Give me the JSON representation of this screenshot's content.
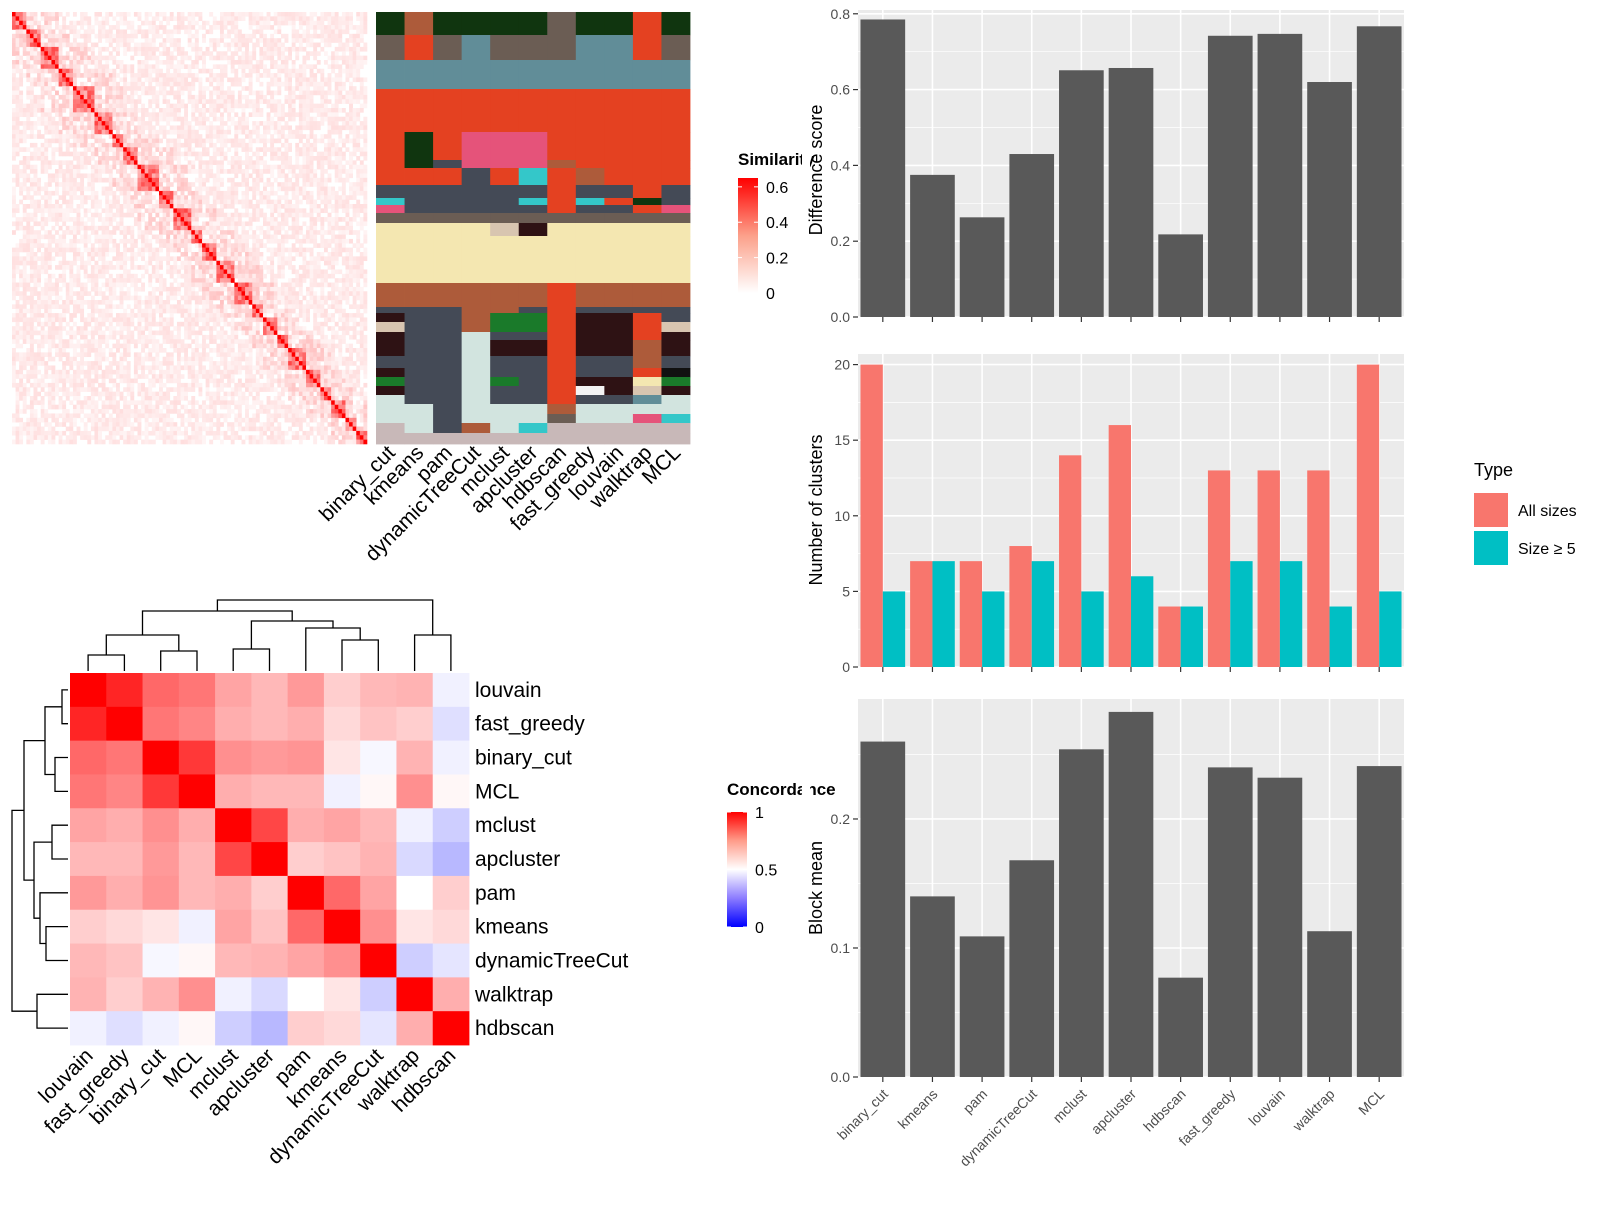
{
  "methods": [
    "binary_cut",
    "kmeans",
    "pam",
    "dynamicTreeCut",
    "mclust",
    "apcluster",
    "hdbscan",
    "fast_greedy",
    "louvain",
    "walktrap",
    "MCL"
  ],
  "similarity_heatmap": {
    "legend_title": "Similarity",
    "legend_ticks": [
      "0",
      "0.2",
      "0.4",
      "0.6"
    ],
    "legend_range": [
      0,
      0.65
    ]
  },
  "concordance_heatmap": {
    "legend_title": "Concordance",
    "legend_ticks": [
      "0",
      "0.5",
      "1"
    ],
    "order": [
      "louvain",
      "fast_greedy",
      "binary_cut",
      "MCL",
      "mclust",
      "apcluster",
      "pam",
      "kmeans",
      "dynamicTreeCut",
      "walktrap",
      "hdbscan"
    ]
  },
  "colors": {
    "gg_panel": "#ebebeb",
    "gg_bar": "#595959",
    "all_sizes": "#f8766d",
    "size_ge_5": "#00bfc4",
    "heat_high": "#ff0000",
    "heat_mid": "#ffffff",
    "heat_low": "#0000ff"
  },
  "chart_data": [
    {
      "type": "bar",
      "categories": [
        "binary_cut",
        "kmeans",
        "pam",
        "dynamicTreeCut",
        "mclust",
        "apcluster",
        "hdbscan",
        "fast_greedy",
        "louvain",
        "walktrap",
        "MCL"
      ],
      "values": [
        0.785,
        0.375,
        0.263,
        0.43,
        0.651,
        0.657,
        0.218,
        0.742,
        0.747,
        0.62,
        0.767
      ],
      "xlabel": "",
      "ylabel": "Difference score",
      "ylim": [
        0,
        0.81
      ],
      "yticks": [
        "0.0",
        "0.2",
        "0.4",
        "0.6",
        "0.8"
      ],
      "grid": true
    },
    {
      "type": "bar",
      "categories": [
        "binary_cut",
        "kmeans",
        "pam",
        "dynamicTreeCut",
        "mclust",
        "apcluster",
        "hdbscan",
        "fast_greedy",
        "louvain",
        "walktrap",
        "MCL"
      ],
      "series": [
        {
          "name": "All sizes",
          "values": [
            20,
            7,
            7,
            8,
            14,
            16,
            4,
            13,
            13,
            13,
            20
          ]
        },
        {
          "name": "Size ≥ 5",
          "values": [
            5,
            7,
            5,
            7,
            5,
            6,
            4,
            7,
            7,
            4,
            5
          ]
        }
      ],
      "xlabel": "",
      "ylabel": "Number of clusters",
      "ylim": [
        0,
        20.7
      ],
      "yticks": [
        "0",
        "5",
        "10",
        "15",
        "20"
      ],
      "legend_title": "Type",
      "legend_position": "right",
      "grid": true
    },
    {
      "type": "bar",
      "categories": [
        "binary_cut",
        "kmeans",
        "pam",
        "dynamicTreeCut",
        "mclust",
        "apcluster",
        "hdbscan",
        "fast_greedy",
        "louvain",
        "walktrap",
        "MCL"
      ],
      "values": [
        0.26,
        0.14,
        0.109,
        0.168,
        0.254,
        0.283,
        0.077,
        0.24,
        0.232,
        0.113,
        0.241
      ],
      "xlabel": "",
      "ylabel": "Block mean",
      "ylim": [
        0,
        0.293
      ],
      "yticks": [
        "0.0",
        "0.1",
        "0.2"
      ],
      "grid": true
    },
    {
      "type": "heatmap",
      "rows": [
        "louvain",
        "fast_greedy",
        "binary_cut",
        "MCL",
        "mclust",
        "apcluster",
        "pam",
        "kmeans",
        "dynamicTreeCut",
        "walktrap",
        "hdbscan"
      ],
      "columns": [
        "louvain",
        "fast_greedy",
        "binary_cut",
        "MCL",
        "mclust",
        "apcluster",
        "pam",
        "kmeans",
        "dynamicTreeCut",
        "walktrap",
        "hdbscan"
      ],
      "values": [
        [
          1.0,
          0.92,
          0.78,
          0.75,
          0.66,
          0.62,
          0.68,
          0.58,
          0.62,
          0.63,
          0.48
        ],
        [
          0.92,
          1.0,
          0.75,
          0.72,
          0.64,
          0.62,
          0.64,
          0.56,
          0.6,
          0.58,
          0.45
        ],
        [
          0.78,
          0.75,
          1.0,
          0.88,
          0.7,
          0.68,
          0.69,
          0.54,
          0.49,
          0.63,
          0.48
        ],
        [
          0.75,
          0.72,
          0.88,
          1.0,
          0.64,
          0.62,
          0.62,
          0.48,
          0.51,
          0.7,
          0.51
        ],
        [
          0.66,
          0.64,
          0.7,
          0.64,
          1.0,
          0.85,
          0.64,
          0.66,
          0.62,
          0.48,
          0.42
        ],
        [
          0.62,
          0.62,
          0.68,
          0.62,
          0.85,
          1.0,
          0.58,
          0.6,
          0.63,
          0.44,
          0.38
        ],
        [
          0.68,
          0.64,
          0.69,
          0.62,
          0.64,
          0.58,
          1.0,
          0.78,
          0.66,
          0.5,
          0.58
        ],
        [
          0.58,
          0.56,
          0.54,
          0.48,
          0.66,
          0.6,
          0.78,
          1.0,
          0.7,
          0.54,
          0.56
        ],
        [
          0.62,
          0.6,
          0.49,
          0.51,
          0.62,
          0.63,
          0.66,
          0.7,
          1.0,
          0.42,
          0.46
        ],
        [
          0.63,
          0.58,
          0.63,
          0.7,
          0.48,
          0.44,
          0.5,
          0.54,
          0.42,
          1.0,
          0.64
        ],
        [
          0.48,
          0.45,
          0.48,
          0.51,
          0.42,
          0.38,
          0.58,
          0.56,
          0.46,
          0.64,
          1.0
        ]
      ],
      "vmin": 0,
      "vmid": 0.5,
      "vmax": 1
    },
    {
      "type": "heatmap",
      "columns": [
        "binary_cut",
        "kmeans",
        "pam",
        "dynamicTreeCut",
        "mclust",
        "apcluster",
        "hdbscan",
        "fast_greedy",
        "louvain",
        "walktrap",
        "MCL"
      ],
      "note_rows_are_genes": true,
      "block_diagonal_sizes": [
        4,
        4,
        5,
        4,
        6,
        5,
        3,
        4,
        6,
        4,
        5,
        3,
        4,
        5,
        5,
        3,
        4,
        3,
        5,
        4,
        3,
        4,
        3,
        3
      ],
      "vmin": 0,
      "vmax": 0.65
    }
  ]
}
